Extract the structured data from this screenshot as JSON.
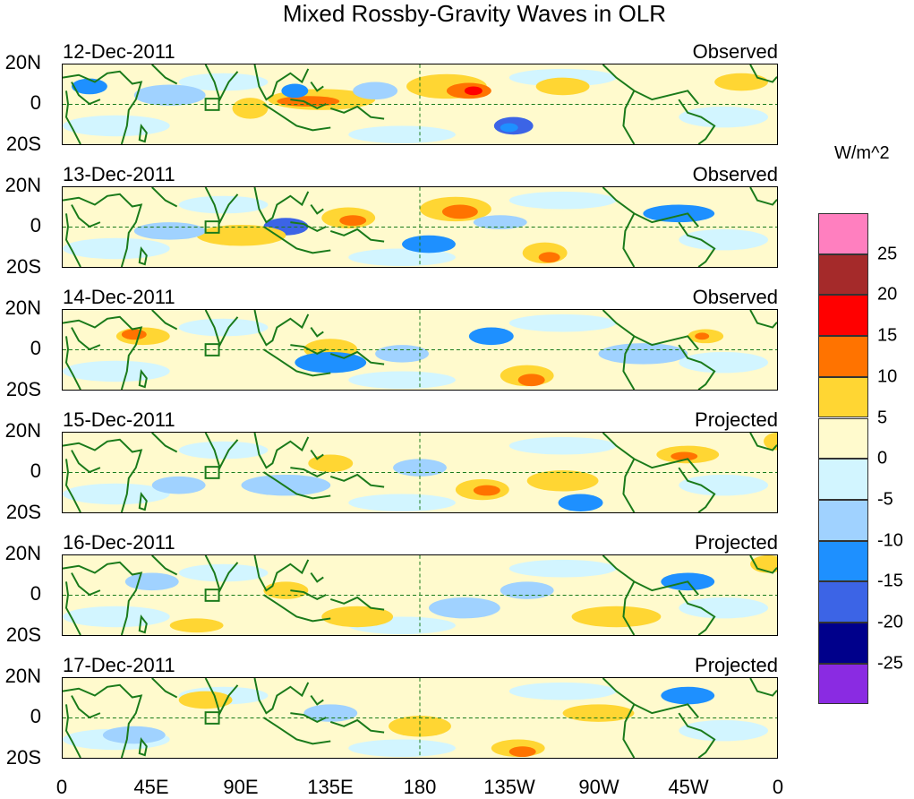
{
  "figure": {
    "title": "Mixed Rossby-Gravity Waves in OLR",
    "unit_label": "W/m^2"
  },
  "axes": {
    "lat_labels": [
      "20N",
      "0",
      "20S"
    ],
    "lon_labels": [
      "0",
      "45E",
      "90E",
      "135E",
      "180",
      "135W",
      "90W",
      "45W",
      "0"
    ]
  },
  "colors": {
    "coast": "#1a7a1a",
    "background": "#fffacd"
  },
  "legend": {
    "bins": [
      {
        "color": "#ff7fbf"
      },
      {
        "color": "#a52a2a",
        "label": "25"
      },
      {
        "color": "#ff0000",
        "label": "20"
      },
      {
        "color": "#ff7300",
        "label": "15"
      },
      {
        "color": "#ffd633",
        "label": "10"
      },
      {
        "color": "#fffacd",
        "label": "5"
      },
      {
        "color": "#d2f5ff",
        "label": "0"
      },
      {
        "color": "#a0d2ff",
        "label": "-5"
      },
      {
        "color": "#1e90ff",
        "label": "-10"
      },
      {
        "color": "#3c64e6",
        "label": "-15"
      },
      {
        "color": "#00008b",
        "label": "-20"
      },
      {
        "color": "#8a2be2",
        "label": "-25"
      }
    ]
  },
  "panels": [
    {
      "date": "12-Dec-2011",
      "type": "Observed"
    },
    {
      "date": "13-Dec-2011",
      "type": "Observed"
    },
    {
      "date": "14-Dec-2011",
      "type": "Observed"
    },
    {
      "date": "15-Dec-2011",
      "type": "Projected"
    },
    {
      "date": "16-Dec-2011",
      "type": "Projected"
    },
    {
      "date": "17-Dec-2011",
      "type": "Projected"
    }
  ]
}
